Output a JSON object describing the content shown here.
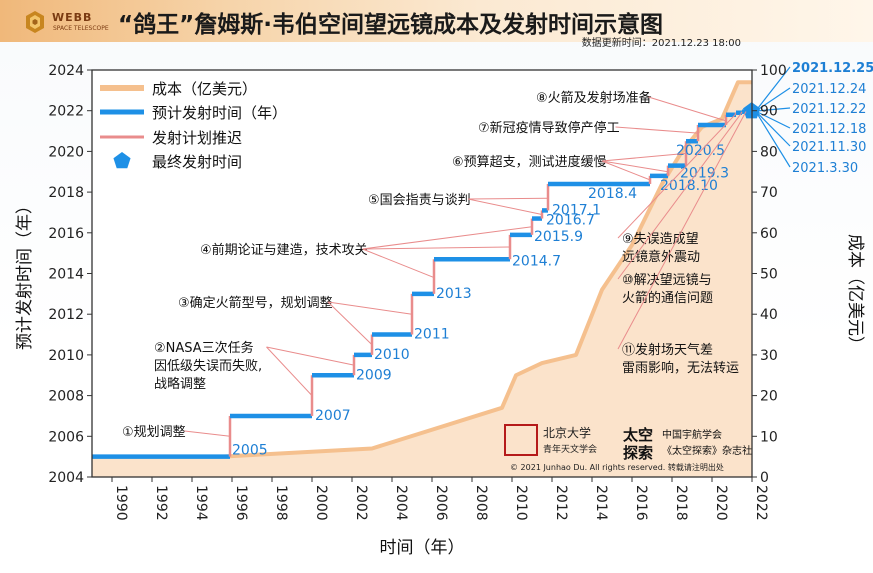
{
  "header": {
    "logo_name": "WEBB",
    "logo_sub": "SPACE TELESCOPE",
    "title": "“鸽王”詹姆斯·韦伯空间望远镜成本及发射时间示意图",
    "update_time": "数据更新时间：2021.12.23 18:00"
  },
  "colors": {
    "cost": "#f5c08e",
    "cost_fill": "#fbe3cb",
    "launch": "#1e90e6",
    "delay": "#e98c8c",
    "final": "#1e90e6",
    "axis": "#333333",
    "date_text": "#1e7fd4"
  },
  "legend": {
    "position": "top-left",
    "items": [
      "成本（亿美元）",
      "预计发射时间（年）",
      "发射计划推迟",
      "最终发射时间"
    ]
  },
  "chart_data": {
    "type": "line",
    "xlabel": "时间（年）",
    "ylabel": "预计发射时间（年）",
    "y2label": "成本（亿美元）",
    "xlim": [
      1989,
      2022
    ],
    "ylim": [
      2004,
      2024
    ],
    "y2lim": [
      0,
      100
    ],
    "x_ticks": [
      1990,
      1992,
      1994,
      1996,
      1998,
      2000,
      2002,
      2004,
      2006,
      2008,
      2010,
      2012,
      2014,
      2016,
      2018,
      2020,
      2022
    ],
    "y_ticks": [
      2004,
      2006,
      2008,
      2010,
      2012,
      2014,
      2016,
      2018,
      2020,
      2022,
      2024
    ],
    "y2_ticks": [
      0,
      10,
      20,
      30,
      40,
      50,
      60,
      70,
      80,
      90,
      100
    ],
    "grid": false,
    "cost_series": {
      "name": "成本（亿美元）",
      "points": [
        [
          1989,
          5
        ],
        [
          1995.5,
          5
        ],
        [
          2003,
          7
        ],
        [
          2009.5,
          17
        ],
        [
          2010.2,
          25
        ],
        [
          2011.5,
          28
        ],
        [
          2013.2,
          30
        ],
        [
          2014.5,
          46
        ],
        [
          2016,
          57
        ],
        [
          2017.5,
          72
        ],
        [
          2018.5,
          80
        ],
        [
          2019.5,
          86
        ],
        [
          2020.5,
          88
        ],
        [
          2021.3,
          97
        ],
        [
          2022,
          97
        ]
      ]
    },
    "launch_steps": [
      {
        "from": 1989,
        "to": 1995.9,
        "year": 2005,
        "label": "2005"
      },
      {
        "from": 1995.9,
        "to": 2000.0,
        "year": 2007,
        "label": "2007"
      },
      {
        "from": 2000.0,
        "to": 2002.1,
        "year": 2009,
        "label": "2009"
      },
      {
        "from": 2002.1,
        "to": 2003.0,
        "year": 2010,
        "label": "2010"
      },
      {
        "from": 2003.0,
        "to": 2005.0,
        "year": 2011,
        "label": "2011"
      },
      {
        "from": 2005.0,
        "to": 2006.1,
        "year": 2013,
        "label": "2013"
      },
      {
        "from": 2006.1,
        "to": 2009.9,
        "year": 2014.7,
        "label": "2014.7"
      },
      {
        "from": 2009.9,
        "to": 2011.0,
        "year": 2015.9,
        "label": "2015.9"
      },
      {
        "from": 2011.0,
        "to": 2011.5,
        "year": 2016.7,
        "label": "2016.7"
      },
      {
        "from": 2011.5,
        "to": 2011.8,
        "year": 2017.1,
        "label": "2017.1"
      },
      {
        "from": 2011.8,
        "to": 2016.9,
        "year": 2018.4,
        "label": "2018.4"
      },
      {
        "from": 2016.9,
        "to": 2017.8,
        "year": 2018.8,
        "label": "2018.10"
      },
      {
        "from": 2017.8,
        "to": 2018.7,
        "year": 2019.3,
        "label": "2019.3"
      },
      {
        "from": 2018.7,
        "to": 2019.3,
        "year": 2020.5,
        "label": "2020.5"
      },
      {
        "from": 2019.3,
        "to": 2020.7,
        "year": 2021.3,
        "label": "2021.3.30"
      },
      {
        "from": 2020.7,
        "to": 2021.2,
        "year": 2021.8,
        "label": "2021.11.30"
      },
      {
        "from": 2021.2,
        "to": 2021.5,
        "year": 2021.9,
        "label": "2021.12.18"
      },
      {
        "from": 2021.5,
        "to": 2021.7,
        "year": 2021.95,
        "label": "2021.12.22"
      },
      {
        "from": 2021.7,
        "to": 2021.85,
        "year": 2021.97,
        "label": "2021.12.24"
      }
    ],
    "final_launch": {
      "x": 2021.98,
      "year": 2021.98,
      "label": "2021.12.25"
    },
    "annotations": [
      {
        "text": "①规划调整",
        "targets": [
          [
            1995.9,
            2006
          ]
        ]
      },
      {
        "text": "②NASA三次任务",
        "text2": "因低级失误而失败,",
        "text3": "战略调整",
        "targets": [
          [
            2000.0,
            2008
          ],
          [
            2002.1,
            2009.5
          ]
        ]
      },
      {
        "text": "③确定火箭型号，规划调整",
        "targets": [
          [
            2003.0,
            2010.5
          ],
          [
            2005.0,
            2012
          ]
        ]
      },
      {
        "text": "④前期论证与建造，技术攻关",
        "targets": [
          [
            2006.1,
            2013.8
          ],
          [
            2009.9,
            2015.3
          ],
          [
            2011.0,
            2016.3
          ]
        ]
      },
      {
        "text": "⑤国会指责与谈判",
        "targets": [
          [
            2011.5,
            2016.9
          ],
          [
            2011.8,
            2017.7
          ]
        ]
      },
      {
        "text": "⑥预算超支，测试进度缓慢",
        "targets": [
          [
            2016.9,
            2018.6
          ],
          [
            2017.8,
            2019.0
          ],
          [
            2018.7,
            2019.9
          ]
        ]
      },
      {
        "text": "⑦新冠疫情导致停产停工",
        "targets": [
          [
            2019.3,
            2020.9
          ]
        ]
      },
      {
        "text": "⑧火箭及发射场准备",
        "targets": [
          [
            2020.7,
            2021.5
          ]
        ]
      },
      {
        "text": "⑨失误造成望",
        "text2": "远镜意外震动",
        "targets": [
          [
            2021.2,
            2021.85
          ]
        ]
      },
      {
        "text": "⑩解决望远镜与",
        "text2": "火箭的通信问题",
        "targets": [
          [
            2021.5,
            2021.92
          ]
        ]
      },
      {
        "text": "⑪发射场天气差",
        "text2": "雷雨影响，无法转运",
        "targets": [
          [
            2021.7,
            2021.96
          ]
        ]
      }
    ]
  },
  "credits": {
    "pku": "北京大学",
    "pku_sub": "青年天文学会",
    "space": "太空",
    "space2": "探索",
    "csa": "中国宇航学会",
    "csa_sub": "《太空探索》杂志社",
    "copyright": "© 2021 Junhao Du. All rights reserved. 转载请注明出处"
  }
}
